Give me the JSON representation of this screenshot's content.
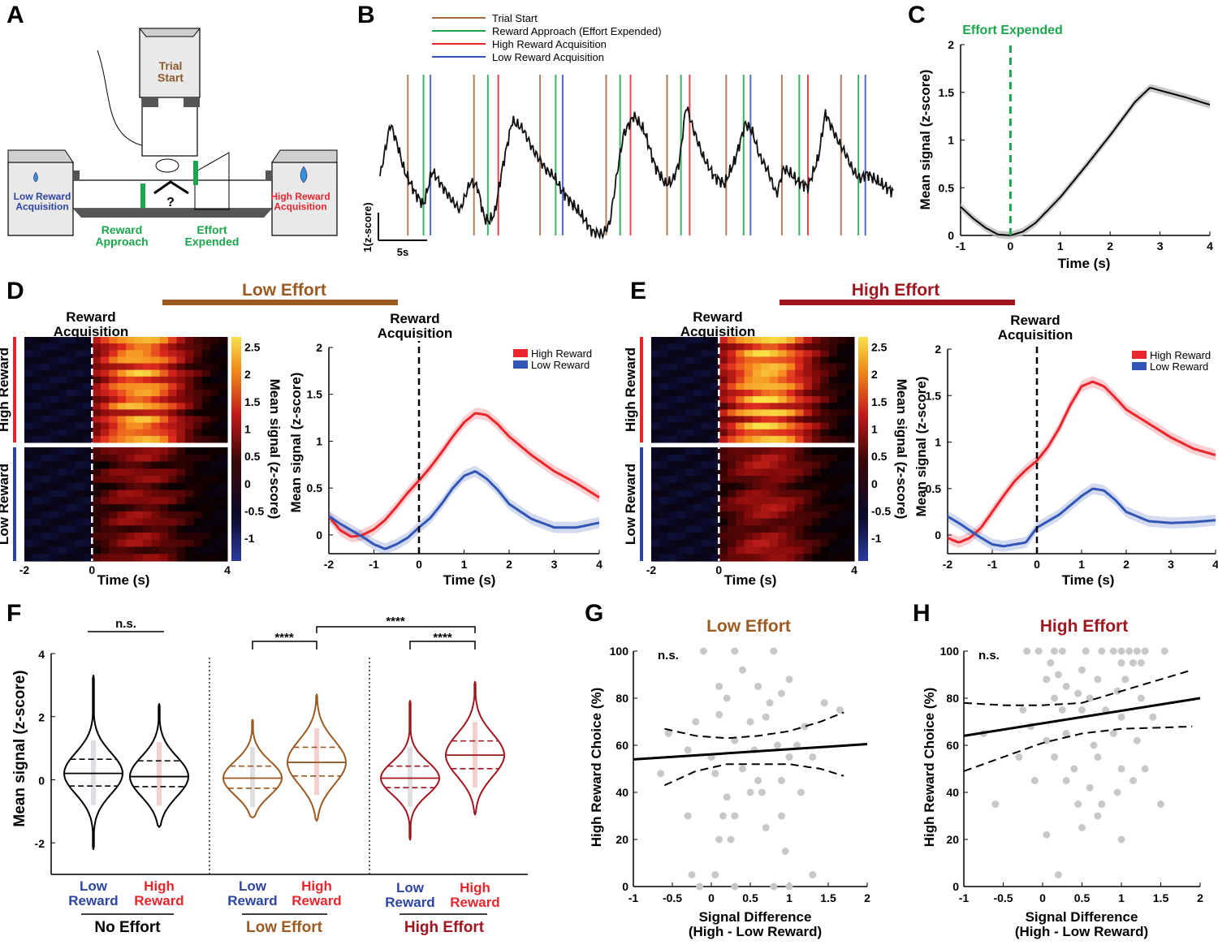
{
  "colors": {
    "brown": "#9a5a22",
    "darkred": "#a0161f",
    "red": "#e8262c",
    "blue": "#2b45a0",
    "green": "#1aa64a",
    "trial": "#a36a44",
    "hi_line": "#e8262c",
    "lo_line": "#3355b5",
    "grey": "#cfcfcf"
  },
  "panel_letters": [
    "A",
    "B",
    "C",
    "D",
    "E",
    "F",
    "G",
    "H"
  ],
  "panel_a": {
    "trial_start": "Trial\nStart",
    "low_reward": "Low Reward\nAcquisition",
    "high_reward": "High Reward\nAcquisition",
    "reward_approach": "Reward\nApproach",
    "effort_expended": "Effort\nExpended",
    "choice_mark": "?"
  },
  "panel_b": {
    "legend": [
      {
        "label": "Trial Start",
        "color": "#a36a44"
      },
      {
        "label": "Reward Approach (Effort Expended)",
        "color": "#1aa64a"
      },
      {
        "label": "High Reward Acquisition",
        "color": "#e8262c"
      },
      {
        "label": "Low Reward Acquisition",
        "color": "#3355b5"
      }
    ],
    "scale_y": "1(z-score)",
    "scale_x": "5s",
    "events": [
      {
        "t": 1.6,
        "type": "trial"
      },
      {
        "t": 2.5,
        "type": "approach"
      },
      {
        "t": 2.9,
        "type": "low"
      },
      {
        "t": 5.4,
        "type": "trial"
      },
      {
        "t": 6.2,
        "type": "approach"
      },
      {
        "t": 6.8,
        "type": "high"
      },
      {
        "t": 9.2,
        "type": "trial"
      },
      {
        "t": 10.1,
        "type": "approach"
      },
      {
        "t": 10.5,
        "type": "low"
      },
      {
        "t": 13.0,
        "type": "trial"
      },
      {
        "t": 13.8,
        "type": "approach"
      },
      {
        "t": 14.4,
        "type": "high"
      },
      {
        "t": 16.5,
        "type": "trial"
      },
      {
        "t": 17.3,
        "type": "approach"
      },
      {
        "t": 17.8,
        "type": "high"
      },
      {
        "t": 19.9,
        "type": "trial"
      },
      {
        "t": 20.9,
        "type": "approach"
      },
      {
        "t": 21.3,
        "type": "low"
      },
      {
        "t": 23.1,
        "type": "trial"
      },
      {
        "t": 24.1,
        "type": "approach"
      },
      {
        "t": 24.6,
        "type": "high"
      },
      {
        "t": 26.5,
        "type": "trial"
      },
      {
        "t": 27.5,
        "type": "approach"
      },
      {
        "t": 27.9,
        "type": "low"
      }
    ]
  },
  "panel_c": {
    "title": "Effort Expended",
    "xlabel": "Time (s)",
    "ylabel": "Mean signal (z-score)",
    "xlim": [
      -1,
      4
    ],
    "ylim": [
      0,
      2
    ],
    "xticks": [
      "-1",
      "0",
      "1",
      "2",
      "3",
      "4"
    ],
    "yticks": [
      "0",
      "0.5",
      "1",
      "1.5",
      "2"
    ]
  },
  "panel_d": {
    "banner": "Low Effort",
    "heat_title": "Reward\nAcquisition",
    "line_title": "Reward\nAcquisition",
    "row_high": "High Reward",
    "row_low": "Low Reward",
    "colorbar_label": "Mean signal (z-score)",
    "colorbar_ticks": [
      "2.5",
      "2",
      "1.5",
      "1",
      "0.5",
      "0",
      "-0.5",
      "-1"
    ],
    "heat_xticks": [
      "-2",
      "0",
      "4"
    ],
    "xlabel": "Time (s)",
    "ylabel": "Mean signal (z-score)",
    "xticks": [
      "-2",
      "-1",
      "0",
      "1",
      "2",
      "3",
      "4"
    ],
    "yticks": [
      "0",
      "0.5",
      "1",
      "1.5",
      "2"
    ],
    "legend": [
      "High Reward",
      "Low Reward"
    ]
  },
  "panel_e": {
    "banner": "High Effort",
    "heat_title": "Reward\nAcquisition",
    "line_title": "Reward\nAcquisition",
    "row_high": "High Reward",
    "row_low": "Low Reward",
    "colorbar_label": "Mean signal (z-score)",
    "colorbar_ticks": [
      "2.5",
      "2",
      "1.5",
      "1",
      "0.5",
      "0",
      "-0.5",
      "-1"
    ],
    "heat_xticks": [
      "-2",
      "0",
      "4"
    ],
    "xlabel": "Time (s)",
    "ylabel": "Mean signal (z-score)",
    "xticks": [
      "-2",
      "-1",
      "0",
      "1",
      "2",
      "3",
      "4"
    ],
    "yticks": [
      "0",
      "0.5",
      "1",
      "1.5",
      "2"
    ],
    "legend": [
      "High Reward",
      "Low Reward"
    ]
  },
  "panel_f": {
    "ylabel": "Mean signal (z-score)",
    "yticks": [
      "-2",
      "0",
      "2",
      "4"
    ],
    "groups": [
      "No Effort",
      "Low Effort",
      "High Effort"
    ],
    "labels": [
      "Low\nReward",
      "High\nReward",
      "Low\nReward",
      "High\nReward",
      "Low\nReward",
      "High\nReward"
    ],
    "sig": [
      "n.s.",
      "****",
      "****",
      "****"
    ]
  },
  "panel_g": {
    "title": "Low Effort",
    "ns": "n.s.",
    "xlabel": "Signal Difference\n(High - Low Reward)",
    "ylabel": "High Reward Choice (%)",
    "xticks": [
      "-1",
      "-0.5",
      "0",
      "0.5",
      "1",
      "1.5",
      "2"
    ],
    "yticks": [
      "0",
      "20",
      "40",
      "60",
      "80",
      "100"
    ]
  },
  "panel_h": {
    "title": "High Effort",
    "ns": "n.s.",
    "xlabel": "Signal Difference\n(High - Low Reward)",
    "ylabel": "High Reward Choice (%)",
    "xticks": [
      "-1",
      "-0.5",
      "0",
      "0.5",
      "1",
      "1.5",
      "2"
    ],
    "yticks": [
      "0",
      "20",
      "40",
      "60",
      "80",
      "100"
    ]
  },
  "chart_data": [
    {
      "type": "line",
      "panel": "C",
      "title": "Effort Expended",
      "xlabel": "Time (s)",
      "ylabel": "Mean signal (z-score)",
      "xlim": [
        -1,
        4
      ],
      "ylim": [
        0,
        2
      ],
      "x": [
        -1,
        -0.75,
        -0.5,
        -0.25,
        0,
        0.25,
        0.5,
        1,
        1.5,
        2,
        2.5,
        2.8,
        3,
        3.5,
        4
      ],
      "series": [
        {
          "name": "Mean signal",
          "values": [
            0.3,
            0.18,
            0.08,
            0.01,
            0,
            0.04,
            0.13,
            0.4,
            0.72,
            1.05,
            1.4,
            1.55,
            1.52,
            1.45,
            1.37
          ]
        }
      ],
      "vline": {
        "x": 0,
        "label": "Effort Expended"
      }
    },
    {
      "type": "line",
      "panel": "D",
      "title": "Low Effort",
      "xlabel": "Time (s)",
      "ylabel": "Mean signal (z-score)",
      "xlim": [
        -2,
        4
      ],
      "ylim": [
        -0.2,
        2
      ],
      "x": [
        -2,
        -1.75,
        -1.5,
        -1.25,
        -1,
        -0.75,
        -0.5,
        -0.25,
        0,
        0.25,
        0.5,
        0.75,
        1,
        1.25,
        1.5,
        1.75,
        2,
        2.5,
        3,
        3.5,
        4
      ],
      "series": [
        {
          "name": "High Reward",
          "values": [
            0.2,
            0.05,
            -0.02,
            0,
            0.06,
            0.16,
            0.3,
            0.45,
            0.58,
            0.72,
            0.88,
            1.05,
            1.2,
            1.3,
            1.28,
            1.18,
            1.05,
            0.85,
            0.68,
            0.55,
            0.4
          ]
        },
        {
          "name": "Low Reward",
          "values": [
            0.2,
            0.12,
            0.05,
            -0.02,
            -0.1,
            -0.15,
            -0.1,
            -0.03,
            0.08,
            0.18,
            0.33,
            0.5,
            0.63,
            0.68,
            0.6,
            0.48,
            0.33,
            0.17,
            0.08,
            0.08,
            0.13
          ]
        }
      ]
    },
    {
      "type": "line",
      "panel": "E",
      "title": "High Effort",
      "xlabel": "Time (s)",
      "ylabel": "Mean signal (z-score)",
      "xlim": [
        -2,
        4
      ],
      "ylim": [
        -0.2,
        2
      ],
      "x": [
        -2,
        -1.75,
        -1.5,
        -1.25,
        -1,
        -0.75,
        -0.5,
        -0.25,
        0,
        0.25,
        0.5,
        0.75,
        1,
        1.25,
        1.5,
        1.75,
        2,
        2.5,
        3,
        3.5,
        4
      ],
      "series": [
        {
          "name": "High Reward",
          "values": [
            -0.03,
            -0.08,
            -0.03,
            0.08,
            0.25,
            0.42,
            0.58,
            0.7,
            0.8,
            0.95,
            1.15,
            1.4,
            1.6,
            1.65,
            1.6,
            1.48,
            1.35,
            1.2,
            1.05,
            0.93,
            0.86
          ]
        },
        {
          "name": "Low Reward",
          "values": [
            0.2,
            0.13,
            0.05,
            -0.03,
            -0.1,
            -0.12,
            -0.1,
            -0.08,
            0.08,
            0.15,
            0.22,
            0.32,
            0.42,
            0.5,
            0.48,
            0.38,
            0.25,
            0.15,
            0.13,
            0.14,
            0.16
          ]
        }
      ]
    },
    {
      "type": "violin",
      "panel": "F",
      "ylabel": "Mean signal (z-score)",
      "ylim": [
        -3,
        4
      ],
      "categories": [
        "No Effort / Low Reward",
        "No Effort / High Reward",
        "Low Effort / Low Reward",
        "Low Effort / High Reward",
        "High Effort / Low Reward",
        "High Effort / High Reward"
      ],
      "median": [
        0.2,
        0.1,
        0.05,
        0.55,
        0.05,
        0.78
      ],
      "q1": [
        -0.2,
        -0.22,
        -0.27,
        0.12,
        -0.25,
        0.35
      ],
      "q3": [
        0.65,
        0.6,
        0.43,
        1.03,
        0.43,
        1.23
      ],
      "min": [
        -2.2,
        -1.5,
        -1.2,
        -1.3,
        -1.9,
        -1.1
      ],
      "max": [
        3.3,
        2.4,
        1.9,
        2.7,
        2.5,
        3.1
      ],
      "comparisons": [
        {
          "pair": [
            0,
            1
          ],
          "label": "n.s."
        },
        {
          "pair": [
            2,
            3
          ],
          "label": "****"
        },
        {
          "pair": [
            3,
            5
          ],
          "label": "****"
        },
        {
          "pair": [
            4,
            5
          ],
          "label": "****"
        }
      ]
    },
    {
      "type": "scatter",
      "panel": "G",
      "title": "Low Effort",
      "xlabel": "Signal Difference (High - Low Reward)",
      "ylabel": "High Reward Choice (%)",
      "xlim": [
        -1,
        2
      ],
      "ylim": [
        0,
        100
      ],
      "fit": {
        "x": [
          -1,
          2
        ],
        "y": [
          54,
          60.5
        ]
      },
      "ci_upper": {
        "x": [
          -0.6,
          -0.2,
          0.2,
          0.6,
          1.0,
          1.4,
          1.7
        ],
        "y": [
          67,
          64,
          63,
          64,
          66,
          70,
          74
        ]
      },
      "ci_lower": {
        "x": [
          -0.6,
          -0.2,
          0.2,
          0.6,
          1.0,
          1.4,
          1.7
        ],
        "y": [
          43,
          49,
          52,
          52,
          52,
          50,
          47
        ]
      },
      "points": [
        {
          "x": -0.1,
          "y": 100
        },
        {
          "x": 0.3,
          "y": 100
        },
        {
          "x": 0.8,
          "y": 100
        },
        {
          "x": 0.4,
          "y": 92
        },
        {
          "x": 0.1,
          "y": 85
        },
        {
          "x": 0.6,
          "y": 85
        },
        {
          "x": 0.2,
          "y": 80
        },
        {
          "x": 0.9,
          "y": 82
        },
        {
          "x": 0.75,
          "y": 78
        },
        {
          "x": 1.0,
          "y": 88
        },
        {
          "x": -0.55,
          "y": 65
        },
        {
          "x": -0.2,
          "y": 70
        },
        {
          "x": 0.1,
          "y": 73
        },
        {
          "x": 0.5,
          "y": 70
        },
        {
          "x": 0.7,
          "y": 72
        },
        {
          "x": 1.45,
          "y": 78
        },
        {
          "x": 1.65,
          "y": 75
        },
        {
          "x": 1.2,
          "y": 68
        },
        {
          "x": -0.3,
          "y": 58
        },
        {
          "x": 0.0,
          "y": 55
        },
        {
          "x": 0.3,
          "y": 62
        },
        {
          "x": 0.55,
          "y": 58
        },
        {
          "x": 0.85,
          "y": 60
        },
        {
          "x": 1.1,
          "y": 60
        },
        {
          "x": 1.3,
          "y": 55
        },
        {
          "x": 0.05,
          "y": 48
        },
        {
          "x": 0.4,
          "y": 50
        },
        {
          "x": 0.6,
          "y": 45
        },
        {
          "x": 0.9,
          "y": 45
        },
        {
          "x": 1.15,
          "y": 40
        },
        {
          "x": -0.65,
          "y": 48
        },
        {
          "x": 0.2,
          "y": 38
        },
        {
          "x": 0.5,
          "y": 40
        },
        {
          "x": 0.65,
          "y": 40
        },
        {
          "x": 1.0,
          "y": 55
        },
        {
          "x": -0.3,
          "y": 30
        },
        {
          "x": 0.15,
          "y": 30
        },
        {
          "x": 0.3,
          "y": 30
        },
        {
          "x": 0.7,
          "y": 25
        },
        {
          "x": 0.9,
          "y": 30
        },
        {
          "x": 0.1,
          "y": 20
        },
        {
          "x": 0.25,
          "y": 20
        },
        {
          "x": 0.95,
          "y": 15
        },
        {
          "x": -0.25,
          "y": 5
        },
        {
          "x": 0.05,
          "y": 5
        },
        {
          "x": 1.3,
          "y": 5
        },
        {
          "x": -0.15,
          "y": 0
        },
        {
          "x": 0.3,
          "y": 0
        },
        {
          "x": 0.8,
          "y": 0
        },
        {
          "x": 1.0,
          "y": 0
        }
      ]
    },
    {
      "type": "scatter",
      "panel": "H",
      "title": "High Effort",
      "xlabel": "Signal Difference (High - Low Reward)",
      "ylabel": "High Reward Choice (%)",
      "xlim": [
        -1,
        2
      ],
      "ylim": [
        0,
        100
      ],
      "fit": {
        "x": [
          -1,
          2
        ],
        "y": [
          64,
          80
        ]
      },
      "ci_upper": {
        "x": [
          -1,
          -0.5,
          0,
          0.5,
          1,
          1.5,
          1.9
        ],
        "y": [
          78,
          77,
          77,
          78,
          83,
          88,
          92
        ]
      },
      "ci_lower": {
        "x": [
          -1,
          -0.5,
          0,
          0.5,
          1,
          1.5,
          1.9
        ],
        "y": [
          49,
          55,
          61,
          65,
          67,
          67.5,
          68
        ]
      },
      "points": [
        {
          "x": -0.05,
          "y": 100
        },
        {
          "x": 0.15,
          "y": 100
        },
        {
          "x": 0.25,
          "y": 100
        },
        {
          "x": 0.55,
          "y": 100
        },
        {
          "x": 0.75,
          "y": 100
        },
        {
          "x": 0.9,
          "y": 100
        },
        {
          "x": 1.0,
          "y": 100
        },
        {
          "x": 1.1,
          "y": 100
        },
        {
          "x": 1.2,
          "y": 100
        },
        {
          "x": 1.3,
          "y": 100
        },
        {
          "x": 1.55,
          "y": 100
        },
        {
          "x": -0.2,
          "y": 100
        },
        {
          "x": 1.0,
          "y": 95
        },
        {
          "x": 1.15,
          "y": 95
        },
        {
          "x": 1.25,
          "y": 95
        },
        {
          "x": 0.1,
          "y": 95
        },
        {
          "x": 0.2,
          "y": 90
        },
        {
          "x": 0.5,
          "y": 92
        },
        {
          "x": 0.05,
          "y": 88
        },
        {
          "x": 0.3,
          "y": 85
        },
        {
          "x": 0.7,
          "y": 88
        },
        {
          "x": 1.05,
          "y": 88
        },
        {
          "x": 0.15,
          "y": 80
        },
        {
          "x": 0.45,
          "y": 82
        },
        {
          "x": 0.6,
          "y": 80
        },
        {
          "x": 0.95,
          "y": 83
        },
        {
          "x": 1.25,
          "y": 80
        },
        {
          "x": -0.25,
          "y": 75
        },
        {
          "x": 0.25,
          "y": 75
        },
        {
          "x": 0.5,
          "y": 75
        },
        {
          "x": 0.8,
          "y": 75
        },
        {
          "x": 1.0,
          "y": 72
        },
        {
          "x": 1.4,
          "y": 72
        },
        {
          "x": -0.75,
          "y": 65
        },
        {
          "x": -0.15,
          "y": 68
        },
        {
          "x": 0.05,
          "y": 62
        },
        {
          "x": 0.3,
          "y": 65
        },
        {
          "x": 0.65,
          "y": 60
        },
        {
          "x": 0.9,
          "y": 65
        },
        {
          "x": 1.2,
          "y": 62
        },
        {
          "x": -0.3,
          "y": 55
        },
        {
          "x": 0.15,
          "y": 55
        },
        {
          "x": 0.4,
          "y": 50
        },
        {
          "x": 0.7,
          "y": 55
        },
        {
          "x": 1.0,
          "y": 50
        },
        {
          "x": 1.3,
          "y": 50
        },
        {
          "x": -0.1,
          "y": 45
        },
        {
          "x": 0.3,
          "y": 45
        },
        {
          "x": 0.6,
          "y": 42
        },
        {
          "x": 0.95,
          "y": 40
        },
        {
          "x": 1.15,
          "y": 45
        },
        {
          "x": -0.6,
          "y": 35
        },
        {
          "x": 0.45,
          "y": 35
        },
        {
          "x": 0.75,
          "y": 35
        },
        {
          "x": 1.5,
          "y": 35
        },
        {
          "x": 0.5,
          "y": 25
        },
        {
          "x": 0.7,
          "y": 30
        },
        {
          "x": 1.0,
          "y": 20
        },
        {
          "x": 0.05,
          "y": 22
        },
        {
          "x": 0.2,
          "y": 5
        }
      ]
    }
  ]
}
